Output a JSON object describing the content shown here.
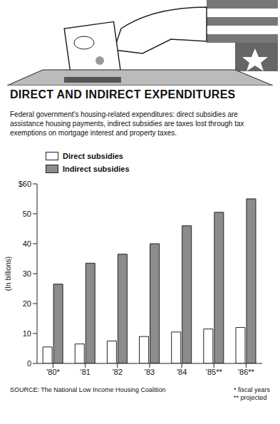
{
  "chart_data": {
    "type": "bar",
    "title": "DIRECT AND INDIRECT EXPENDITURES",
    "subtitle": "Federal government's housing-related expenditures: direct subsidies are assistance housing payments, indirect subsidies are taxes lost through tax exemptions on mortgage interest and property taxes.",
    "y_label": "(In billions)",
    "categories": [
      "'80*",
      "'81",
      "'82",
      "'83",
      "'84",
      "'85**",
      "'86**"
    ],
    "series": [
      {
        "name": "Direct subsidies",
        "color": "#ffffff",
        "values": [
          5.5,
          6.5,
          7.5,
          9,
          10.5,
          11.5,
          12
        ]
      },
      {
        "name": "Indirect subsidies",
        "color": "#8c8c8c",
        "values": [
          26.5,
          33.5,
          36.5,
          40,
          46,
          50.5,
          55
        ]
      }
    ],
    "ylim": [
      0,
      60
    ],
    "yticks": [
      0,
      10,
      20,
      30,
      40,
      50,
      {
        "value": 60,
        "label": "$60"
      }
    ],
    "grid": false,
    "legend": "top-left",
    "source": "SOURCE: The National Low Income Housing Coalition",
    "footnotes": [
      "* fiscal years",
      "** projected"
    ]
  }
}
